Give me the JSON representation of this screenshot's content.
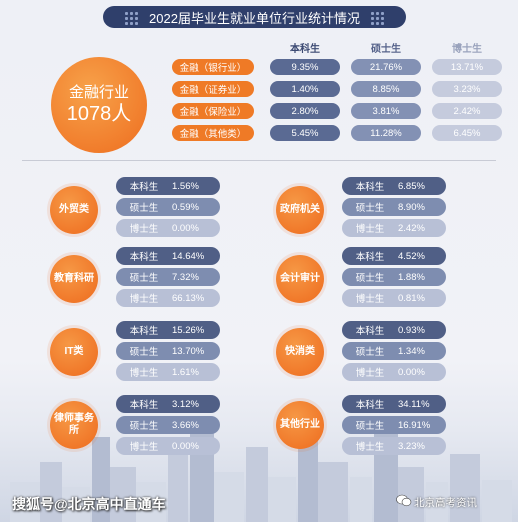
{
  "title": "2022届毕业生就业单位行业统计情况",
  "columns": {
    "bachelor": "本科生",
    "master": "硕士生",
    "doctor": "博士生"
  },
  "finance": {
    "name": "金融行业",
    "count": "1078人",
    "rows": [
      {
        "label": "金融（银行业）",
        "bachelor": "9.35%",
        "master": "21.76%",
        "doctor": "13.71%"
      },
      {
        "label": "金融（证券业）",
        "bachelor": "1.40%",
        "master": "8.85%",
        "doctor": "3.23%"
      },
      {
        "label": "金融（保险业）",
        "bachelor": "2.80%",
        "master": "3.81%",
        "doctor": "2.42%"
      },
      {
        "label": "金融（其他类）",
        "bachelor": "5.45%",
        "master": "11.28%",
        "doctor": "6.45%"
      }
    ]
  },
  "categories": [
    {
      "name": "外贸类",
      "bachelor": "1.56%",
      "master": "0.59%",
      "doctor": "0.00%"
    },
    {
      "name": "政府机关",
      "bachelor": "6.85%",
      "master": "8.90%",
      "doctor": "2.42%"
    },
    {
      "name": "教育科研",
      "bachelor": "14.64%",
      "master": "7.32%",
      "doctor": "66.13%"
    },
    {
      "name": "会计审计",
      "bachelor": "4.52%",
      "master": "1.88%",
      "doctor": "0.81%"
    },
    {
      "name": "IT类",
      "bachelor": "15.26%",
      "master": "13.70%",
      "doctor": "1.61%"
    },
    {
      "name": "快消类",
      "bachelor": "0.93%",
      "master": "1.34%",
      "doctor": "0.00%"
    },
    {
      "name": "律师事务所",
      "bachelor": "3.12%",
      "master": "3.66%",
      "doctor": "0.00%"
    },
    {
      "name": "其他行业",
      "bachelor": "34.11%",
      "master": "16.91%",
      "doctor": "3.23%"
    }
  ],
  "watermark_left": "搜狐号@北京高中直通车",
  "watermark_right": "北京高考资讯",
  "colors": {
    "orange": "#ef7a26",
    "navy": "#2f3f6b",
    "bachelor": "#505f86",
    "master": "#7e8db0",
    "doctor": "#b8c0d6"
  }
}
